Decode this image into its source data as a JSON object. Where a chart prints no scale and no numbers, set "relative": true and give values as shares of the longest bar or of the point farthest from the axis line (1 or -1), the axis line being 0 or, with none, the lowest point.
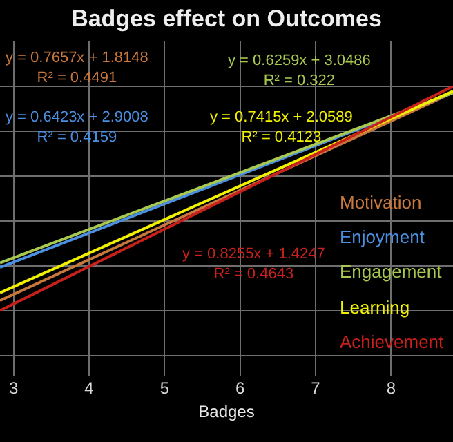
{
  "chart_data": {
    "type": "line",
    "title": "Badges effect on Outcomes",
    "xlabel": "Badges",
    "relative": true,
    "x": [
      2.82,
      8.82
    ],
    "xlim": [
      2.82,
      8.82
    ],
    "xticks": [
      3,
      4,
      5,
      6,
      7,
      8
    ],
    "tick_labels": "x",
    "grid": true,
    "legend": "right",
    "marker": "none",
    "line_style": "solid",
    "series": [
      {
        "name": "Motivation",
        "color": "#c8783c",
        "values": [
          0.045,
          0.972
        ]
      },
      {
        "name": "Enjoyment",
        "color": "#4a8fe0",
        "values": [
          0.193,
          0.972
        ]
      },
      {
        "name": "Engagement",
        "color": "#a8c850",
        "values": [
          0.213,
          0.972
        ]
      },
      {
        "name": "Learning",
        "color": "#f0f000",
        "values": [
          0.08,
          0.978
        ]
      },
      {
        "name": "Achievement",
        "color": "#c8201c",
        "values": [
          0,
          1
        ]
      }
    ],
    "annotations": [
      "y = 0.7657x + 1.8148\nR² = 0.4491",
      "y = 0.6423x + 2.9008\nR² = 0.4159",
      "y = 0.6259x + 3.0486\nR² = 0.322",
      "y = 0.7415x + 2.0589\nR² = 0.4123",
      "y = 0.8255x + 1.4247\nR² = 0.4643"
    ]
  }
}
